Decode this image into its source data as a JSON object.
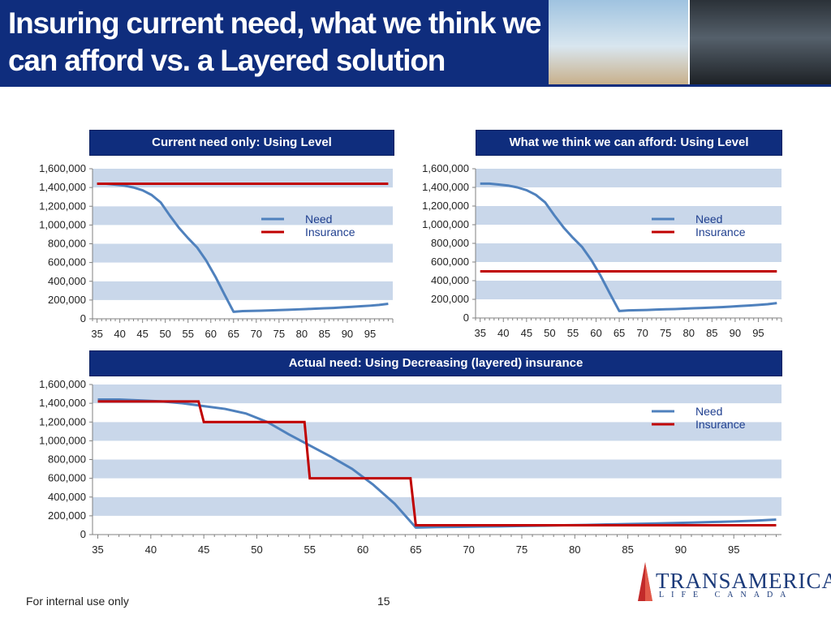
{
  "slide": {
    "title_line1": "Insuring current need, what we think we",
    "title_line2": "can afford vs. a Layered solution",
    "footer_text": "For internal use only",
    "page_number": "15",
    "logo_name": "TRANSAMERICA",
    "logo_sub": "LIFE CANADA",
    "colors": {
      "navy": "#0f2d7d",
      "band": "#c9d7ea",
      "need": "#4f81bd",
      "insurance": "#c00000"
    }
  },
  "chart_data": [
    {
      "type": "line",
      "title": "Current need only: Using Level",
      "x": [
        35,
        37,
        39,
        41,
        43,
        45,
        47,
        49,
        51,
        53,
        55,
        57,
        59,
        61,
        63,
        65,
        67,
        69,
        71,
        73,
        75,
        77,
        79,
        81,
        83,
        85,
        87,
        89,
        91,
        93,
        95,
        97,
        99
      ],
      "series": [
        {
          "name": "Need",
          "values": [
            1440000,
            1440000,
            1430000,
            1420000,
            1400000,
            1370000,
            1320000,
            1240000,
            1100000,
            970000,
            860000,
            760000,
            620000,
            450000,
            260000,
            75000,
            82000,
            84000,
            86000,
            90000,
            93000,
            96000,
            100000,
            104000,
            108000,
            112000,
            116000,
            122000,
            128000,
            134000,
            140000,
            148000,
            160000
          ]
        },
        {
          "name": "Insurance",
          "values": [
            1440000,
            1440000,
            1440000,
            1440000,
            1440000,
            1440000,
            1440000,
            1440000,
            1440000,
            1440000,
            1440000,
            1440000,
            1440000,
            1440000,
            1440000,
            1440000,
            1440000,
            1440000,
            1440000,
            1440000,
            1440000,
            1440000,
            1440000,
            1440000,
            1440000,
            1440000,
            1440000,
            1440000,
            1440000,
            1440000,
            1440000,
            1440000,
            1440000
          ]
        }
      ],
      "x_ticks": [
        "35",
        "40",
        "45",
        "50",
        "55",
        "60",
        "65",
        "70",
        "75",
        "80",
        "85",
        "90",
        "95"
      ],
      "y_ticks": [
        "0",
        "200,000",
        "400,000",
        "600,000",
        "800,000",
        "1,000,000",
        "1,200,000",
        "1,400,000",
        "1,600,000"
      ],
      "ylim": [
        0,
        1600000
      ],
      "xlim": [
        34,
        100
      ],
      "legend": [
        "Need",
        "Insurance"
      ]
    },
    {
      "type": "line",
      "title": "What we think we can afford: Using Level",
      "x": [
        35,
        37,
        39,
        41,
        43,
        45,
        47,
        49,
        51,
        53,
        55,
        57,
        59,
        61,
        63,
        65,
        67,
        69,
        71,
        73,
        75,
        77,
        79,
        81,
        83,
        85,
        87,
        89,
        91,
        93,
        95,
        97,
        99
      ],
      "series": [
        {
          "name": "Need",
          "values": [
            1440000,
            1440000,
            1430000,
            1420000,
            1400000,
            1370000,
            1320000,
            1240000,
            1100000,
            970000,
            860000,
            760000,
            620000,
            450000,
            260000,
            75000,
            82000,
            84000,
            86000,
            90000,
            93000,
            96000,
            100000,
            104000,
            108000,
            112000,
            116000,
            122000,
            128000,
            134000,
            140000,
            148000,
            160000
          ]
        },
        {
          "name": "Insurance",
          "values": [
            500000,
            500000,
            500000,
            500000,
            500000,
            500000,
            500000,
            500000,
            500000,
            500000,
            500000,
            500000,
            500000,
            500000,
            500000,
            500000,
            500000,
            500000,
            500000,
            500000,
            500000,
            500000,
            500000,
            500000,
            500000,
            500000,
            500000,
            500000,
            500000,
            500000,
            500000,
            500000,
            500000
          ]
        }
      ],
      "x_ticks": [
        "35",
        "40",
        "45",
        "50",
        "55",
        "60",
        "65",
        "70",
        "75",
        "80",
        "85",
        "90",
        "95"
      ],
      "y_ticks": [
        "0",
        "200,000",
        "400,000",
        "600,000",
        "800,000",
        "1,000,000",
        "1,200,000",
        "1,400,000",
        "1,600,000"
      ],
      "ylim": [
        0,
        1600000
      ],
      "xlim": [
        34,
        100
      ],
      "legend": [
        "Need",
        "Insurance"
      ]
    },
    {
      "type": "line",
      "title": "Actual need: Using Decreasing (layered) insurance",
      "x": [
        35,
        37,
        39,
        41,
        43,
        45,
        47,
        49,
        51,
        53,
        55,
        57,
        59,
        61,
        63,
        65,
        67,
        69,
        71,
        73,
        75,
        77,
        79,
        81,
        83,
        85,
        87,
        89,
        91,
        93,
        95,
        97,
        99
      ],
      "series": [
        {
          "name": "Need",
          "values": [
            1440000,
            1440000,
            1430000,
            1420000,
            1400000,
            1370000,
            1340000,
            1290000,
            1200000,
            1070000,
            950000,
            830000,
            700000,
            530000,
            330000,
            75000,
            80000,
            82000,
            85000,
            88000,
            92000,
            95000,
            99000,
            103000,
            108000,
            112000,
            117000,
            122000,
            128000,
            134000,
            140000,
            148000,
            160000
          ]
        },
        {
          "name": "Insurance",
          "values": [
            1420000,
            1420000,
            1420000,
            1420000,
            1420000,
            1200000,
            1200000,
            1200000,
            1200000,
            1200000,
            600000,
            600000,
            600000,
            600000,
            600000,
            100000,
            100000,
            100000,
            100000,
            100000,
            100000,
            100000,
            100000,
            100000,
            100000,
            100000,
            100000,
            100000,
            100000,
            100000,
            100000,
            100000,
            100000
          ]
        }
      ],
      "insurance_steps": [
        [
          35,
          1420000
        ],
        [
          44.5,
          1420000
        ],
        [
          45,
          1200000
        ],
        [
          54.5,
          1200000
        ],
        [
          55,
          600000
        ],
        [
          64.5,
          600000
        ],
        [
          65,
          100000
        ],
        [
          99,
          100000
        ]
      ],
      "x_ticks": [
        "35",
        "40",
        "45",
        "50",
        "55",
        "60",
        "65",
        "70",
        "75",
        "80",
        "85",
        "90",
        "95"
      ],
      "y_ticks": [
        "0",
        "200,000",
        "400,000",
        "600,000",
        "800,000",
        "1,000,000",
        "1,200,000",
        "1,400,000",
        "1,600,000"
      ],
      "ylim": [
        0,
        1600000
      ],
      "xlim": [
        34.5,
        99.5
      ],
      "legend": [
        "Need",
        "Insurance"
      ]
    }
  ]
}
